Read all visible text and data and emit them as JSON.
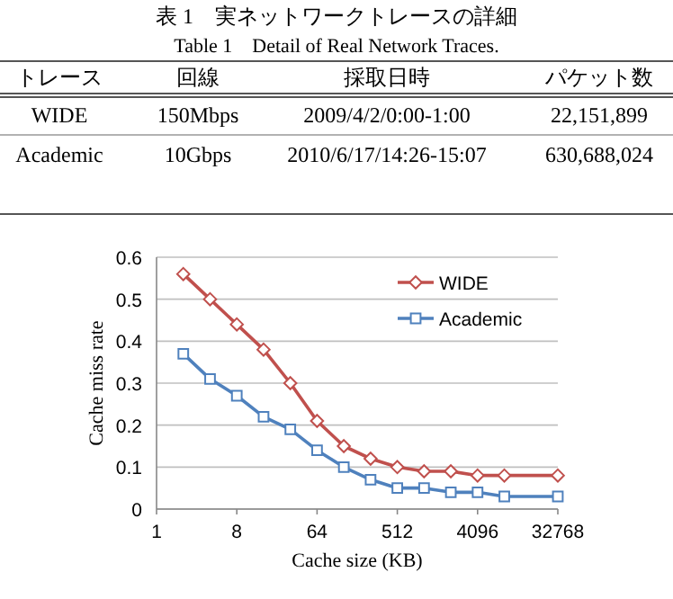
{
  "chart_data": [
    {
      "type": "other",
      "title": "表 1　実ネットワークトレースの詳細",
      "subtitle": "Table 1    Detail of Real Network Traces.",
      "categories": [
        "トレース",
        "回線",
        "採取日時",
        "パケット数"
      ],
      "annotations": [
        "WIDE",
        "150Mbps",
        "2009/4/2/0:00-1:00",
        "22,151,899",
        "Academic",
        "10Gbps",
        "2010/6/17/14:26-15:07",
        "630,688,024"
      ]
    },
    {
      "type": "line",
      "xlabel": "Cache size (KB)",
      "ylabel": "Cache miss rate",
      "log": "x",
      "x": [
        2,
        4,
        8,
        16,
        32,
        64,
        128,
        256,
        512,
        1024,
        2048,
        4096,
        8192,
        32768
      ],
      "xlim": [
        1,
        32768
      ],
      "xticks": [
        1,
        8,
        64,
        512,
        4096,
        32768
      ],
      "ylim": [
        0,
        0.6
      ],
      "yticks": [
        0,
        0.1,
        0.2,
        0.3,
        0.4,
        0.5,
        0.6
      ],
      "grid": "y",
      "legend": "top right",
      "series": [
        {
          "name": "WIDE",
          "color": "#c0504d",
          "marker": "diamond",
          "values": [
            0.56,
            0.5,
            0.44,
            0.38,
            0.3,
            0.21,
            0.15,
            0.12,
            0.1,
            0.09,
            0.09,
            0.08,
            0.08,
            0.08
          ]
        },
        {
          "name": "Academic",
          "color": "#4f81bd",
          "marker": "square",
          "values": [
            0.37,
            0.31,
            0.27,
            0.22,
            0.19,
            0.14,
            0.1,
            0.07,
            0.05,
            0.05,
            0.04,
            0.04,
            0.03,
            0.03
          ]
        }
      ]
    }
  ]
}
